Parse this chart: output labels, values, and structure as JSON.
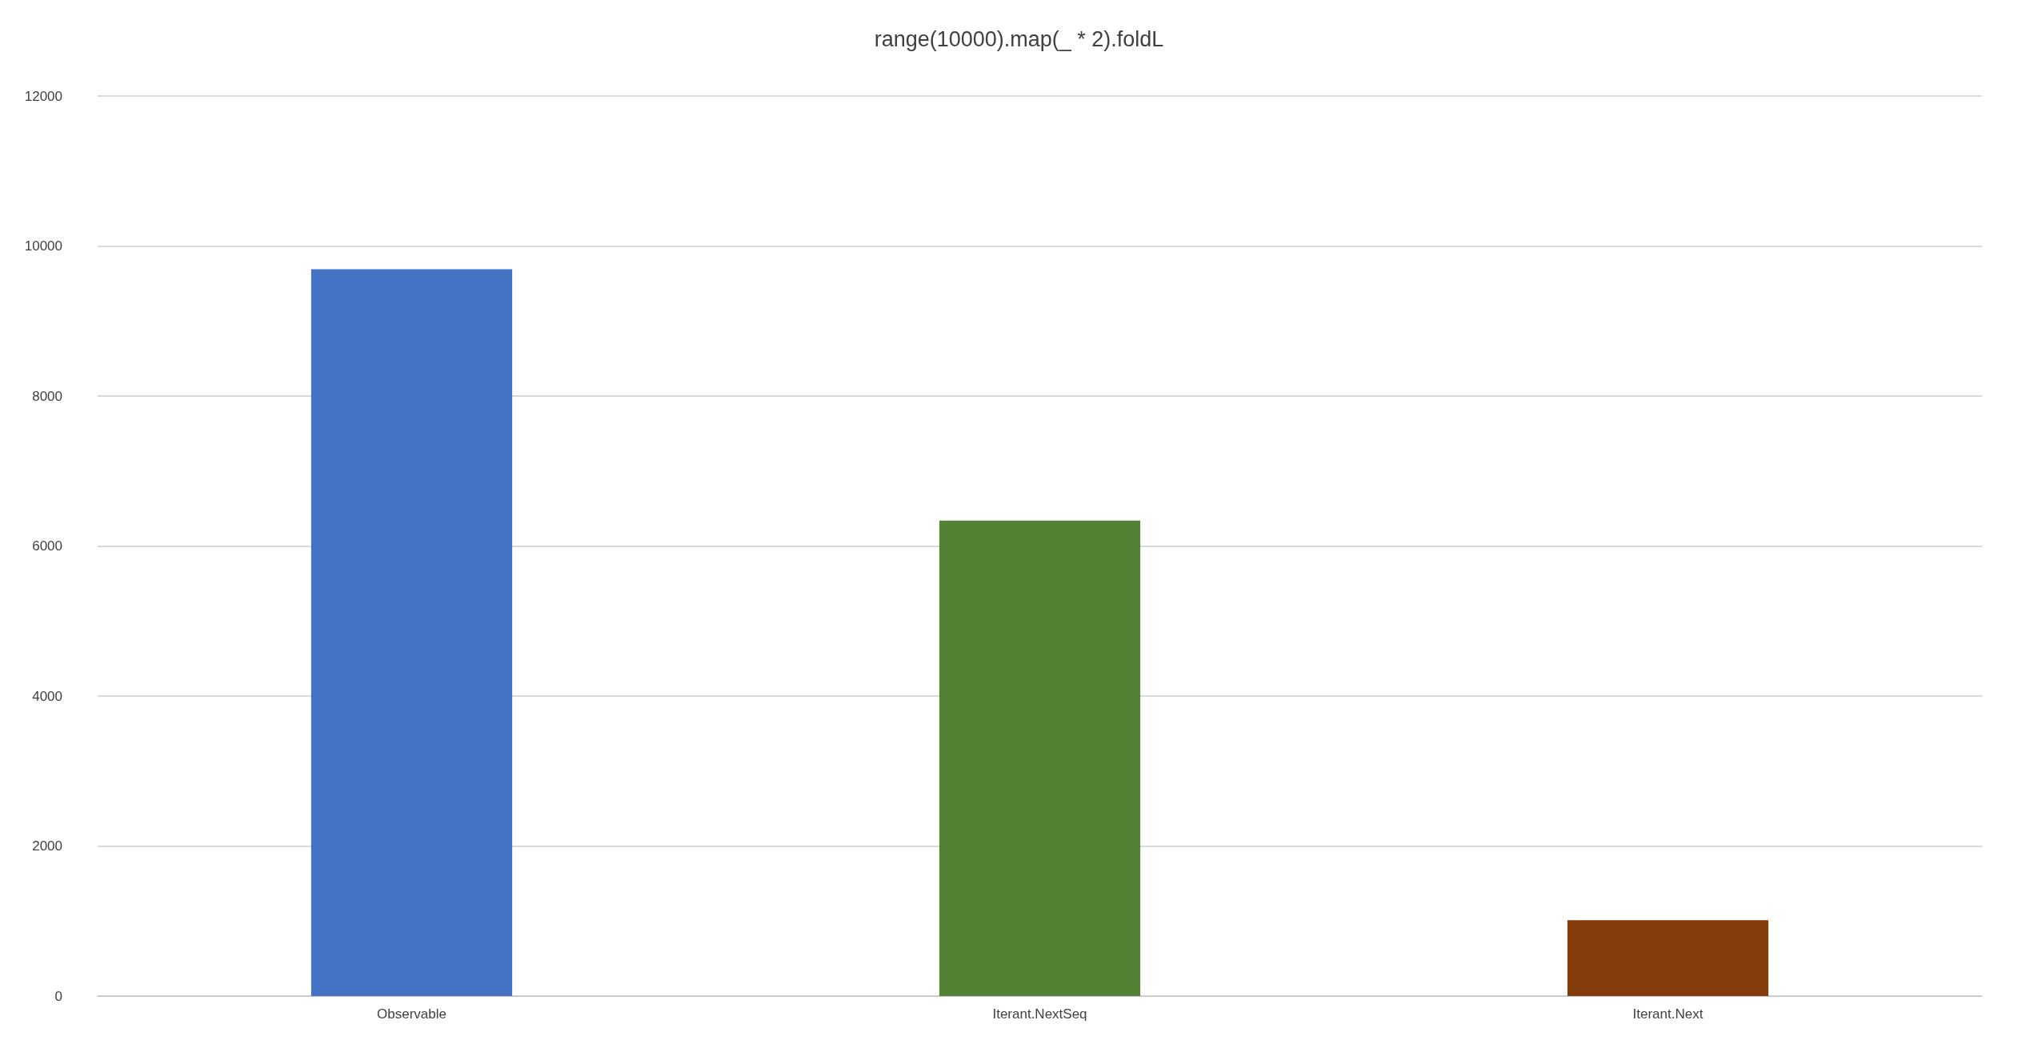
{
  "chart_data": {
    "type": "bar",
    "title": "range(10000).map(_ * 2).foldL",
    "categories": [
      "Observable",
      "Iterant.NextSeq",
      "Iterant.Next"
    ],
    "values": [
      9690,
      6340,
      1010
    ],
    "colors": [
      "#4472c4",
      "#548235",
      "#843c0c"
    ],
    "ylim": [
      0,
      12000
    ],
    "yticks": [
      0,
      2000,
      4000,
      6000,
      8000,
      10000,
      12000
    ],
    "grid": "y"
  }
}
